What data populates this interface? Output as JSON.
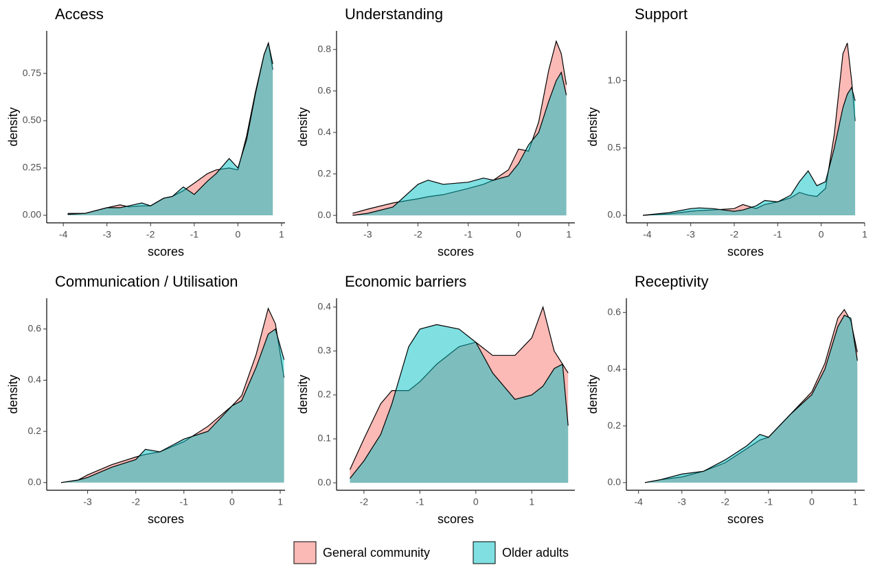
{
  "legend": {
    "items": [
      {
        "name": "General community",
        "color": "#F8766D"
      },
      {
        "name": "Older adults",
        "color": "#00BFC4"
      }
    ]
  },
  "chart_data": [
    {
      "type": "density",
      "title": "Access",
      "xlabel": "scores",
      "ylabel": "density",
      "x": [
        -3.9,
        -3.5,
        -3,
        -2.7,
        -2.5,
        -2.2,
        -2,
        -1.7,
        -1.5,
        -1.25,
        -1,
        -0.7,
        -0.5,
        -0.2,
        0,
        0.2,
        0.4,
        0.6,
        0.7,
        0.8
      ],
      "series": [
        {
          "values": [
            0.01,
            0.01,
            0.04,
            0.055,
            0.045,
            0.05,
            0.05,
            0.09,
            0.1,
            0.13,
            0.17,
            0.22,
            0.24,
            0.25,
            0.24,
            0.42,
            0.65,
            0.85,
            0.91,
            0.77
          ]
        },
        {
          "values": [
            0.005,
            0.01,
            0.04,
            0.04,
            0.05,
            0.065,
            0.05,
            0.09,
            0.1,
            0.15,
            0.11,
            0.18,
            0.22,
            0.3,
            0.25,
            0.4,
            0.64,
            0.85,
            0.91,
            0.8
          ]
        }
      ],
      "xlim": [
        -4.38,
        1.08
      ],
      "xticks": [
        -4,
        -3,
        -2,
        -1,
        0,
        1
      ],
      "ylim": [
        -0.04,
        0.975
      ],
      "yticks": [
        {
          "value": 0,
          "label": "0.00"
        },
        {
          "value": 0.25,
          "label": "0.25"
        },
        {
          "value": 0.5,
          "label": "0.50"
        },
        {
          "value": 0.75,
          "label": "0.75"
        }
      ]
    },
    {
      "type": "density",
      "title": "Understanding",
      "xlabel": "scores",
      "ylabel": "density",
      "x": [
        -3.3,
        -3,
        -2.5,
        -2,
        -1.8,
        -1.5,
        -1,
        -0.7,
        -0.5,
        -0.2,
        0,
        0.2,
        0.4,
        0.6,
        0.75,
        0.85,
        0.95
      ],
      "series": [
        {
          "values": [
            0.01,
            0.03,
            0.06,
            0.08,
            0.09,
            0.1,
            0.13,
            0.15,
            0.17,
            0.22,
            0.32,
            0.31,
            0.45,
            0.7,
            0.84,
            0.78,
            0.63
          ]
        },
        {
          "values": [
            0,
            0.01,
            0.04,
            0.15,
            0.17,
            0.15,
            0.16,
            0.18,
            0.17,
            0.19,
            0.25,
            0.34,
            0.4,
            0.55,
            0.65,
            0.69,
            0.58
          ]
        }
      ],
      "xlim": [
        -3.62,
        1.12
      ],
      "xticks": [
        -3,
        -2,
        -1,
        0,
        1
      ],
      "ylim": [
        -0.036,
        0.89
      ],
      "yticks": [
        {
          "value": 0,
          "label": "0.0"
        },
        {
          "value": 0.2,
          "label": "0.2"
        },
        {
          "value": 0.4,
          "label": "0.4"
        },
        {
          "value": 0.6,
          "label": "0.6"
        },
        {
          "value": 0.8,
          "label": "0.8"
        }
      ]
    },
    {
      "type": "density",
      "title": "Support",
      "xlabel": "scores",
      "ylabel": "density",
      "x": [
        -4.1,
        -3.5,
        -3,
        -2.8,
        -2.5,
        -2,
        -1.8,
        -1.5,
        -1.3,
        -1,
        -0.7,
        -0.5,
        -0.3,
        -0.1,
        0.1,
        0.3,
        0.5,
        0.6,
        0.7,
        0.78
      ],
      "series": [
        {
          "values": [
            0,
            0.01,
            0.03,
            0.035,
            0.04,
            0.05,
            0.08,
            0.05,
            0.08,
            0.1,
            0.13,
            0.17,
            0.15,
            0.14,
            0.2,
            0.6,
            1.2,
            1.28,
            1.0,
            0.7
          ]
        },
        {
          "values": [
            0,
            0.02,
            0.05,
            0.055,
            0.05,
            0.03,
            0.04,
            0.07,
            0.11,
            0.1,
            0.15,
            0.25,
            0.33,
            0.22,
            0.25,
            0.5,
            0.8,
            0.9,
            0.95,
            0.85
          ]
        }
      ],
      "xlim": [
        -4.48,
        1.0
      ],
      "xticks": [
        -4,
        -3,
        -2,
        -1,
        0,
        1
      ],
      "ylim": [
        -0.056,
        1.37
      ],
      "yticks": [
        {
          "value": 0,
          "label": "0.0"
        },
        {
          "value": 0.5,
          "label": "0.5"
        },
        {
          "value": 1,
          "label": "1.0"
        }
      ]
    },
    {
      "type": "density",
      "title": "Communication / Utilisation",
      "xlabel": "scores",
      "ylabel": "density",
      "x": [
        -3.55,
        -3.2,
        -3,
        -2.5,
        -2,
        -1.8,
        -1.5,
        -1,
        -0.5,
        0,
        0.2,
        0.5,
        0.75,
        0.9,
        1.08
      ],
      "series": [
        {
          "values": [
            0,
            0.01,
            0.03,
            0.07,
            0.1,
            0.11,
            0.12,
            0.16,
            0.22,
            0.3,
            0.34,
            0.5,
            0.68,
            0.62,
            0.41
          ]
        },
        {
          "values": [
            0,
            0.01,
            0.02,
            0.06,
            0.09,
            0.13,
            0.12,
            0.17,
            0.2,
            0.3,
            0.32,
            0.45,
            0.58,
            0.6,
            0.48
          ]
        }
      ],
      "xlim": [
        -3.85,
        1.1
      ],
      "xticks": [
        -3,
        -2,
        -1,
        0,
        1
      ],
      "ylim": [
        -0.03,
        0.72
      ],
      "yticks": [
        {
          "value": 0,
          "label": "0.0"
        },
        {
          "value": 0.2,
          "label": "0.2"
        },
        {
          "value": 0.4,
          "label": "0.4"
        },
        {
          "value": 0.6,
          "label": "0.6"
        }
      ]
    },
    {
      "type": "density",
      "title": "Economic barriers",
      "xlabel": "scores",
      "ylabel": "density",
      "x": [
        -2.25,
        -2,
        -1.7,
        -1.5,
        -1.2,
        -1,
        -0.7,
        -0.3,
        0,
        0.3,
        0.7,
        1,
        1.2,
        1.4,
        1.55,
        1.65
      ],
      "series": [
        {
          "values": [
            0.03,
            0.1,
            0.18,
            0.21,
            0.21,
            0.23,
            0.27,
            0.31,
            0.32,
            0.29,
            0.29,
            0.33,
            0.4,
            0.3,
            0.27,
            0.25
          ]
        },
        {
          "values": [
            0.01,
            0.05,
            0.11,
            0.18,
            0.31,
            0.35,
            0.36,
            0.35,
            0.32,
            0.25,
            0.19,
            0.2,
            0.22,
            0.26,
            0.27,
            0.13
          ]
        }
      ],
      "xlim": [
        -2.49,
        1.77
      ],
      "xticks": [
        -2,
        -1,
        0,
        1
      ],
      "ylim": [
        -0.017,
        0.42
      ],
      "yticks": [
        {
          "value": 0,
          "label": "0.0"
        },
        {
          "value": 0.1,
          "label": "0.1"
        },
        {
          "value": 0.2,
          "label": "0.2"
        },
        {
          "value": 0.3,
          "label": "0.3"
        },
        {
          "value": 0.4,
          "label": "0.4"
        }
      ]
    },
    {
      "type": "density",
      "title": "Receptivity",
      "xlabel": "scores",
      "ylabel": "density",
      "x": [
        -3.85,
        -3.5,
        -3,
        -2.5,
        -2,
        -1.5,
        -1.2,
        -1,
        -0.5,
        0,
        0.3,
        0.6,
        0.75,
        0.9,
        1.05
      ],
      "series": [
        {
          "values": [
            0,
            0.01,
            0.02,
            0.04,
            0.07,
            0.12,
            0.15,
            0.16,
            0.24,
            0.32,
            0.42,
            0.58,
            0.61,
            0.57,
            0.46
          ]
        },
        {
          "values": [
            0,
            0.01,
            0.03,
            0.04,
            0.08,
            0.13,
            0.17,
            0.16,
            0.24,
            0.31,
            0.4,
            0.55,
            0.59,
            0.58,
            0.43
          ]
        }
      ],
      "xlim": [
        -4.28,
        1.22
      ],
      "xticks": [
        -4,
        -3,
        -2,
        -1,
        0,
        1
      ],
      "ylim": [
        -0.027,
        0.65
      ],
      "yticks": [
        {
          "value": 0,
          "label": "0.0"
        },
        {
          "value": 0.2,
          "label": "0.2"
        },
        {
          "value": 0.4,
          "label": "0.4"
        },
        {
          "value": 0.6,
          "label": "0.6"
        }
      ]
    }
  ]
}
